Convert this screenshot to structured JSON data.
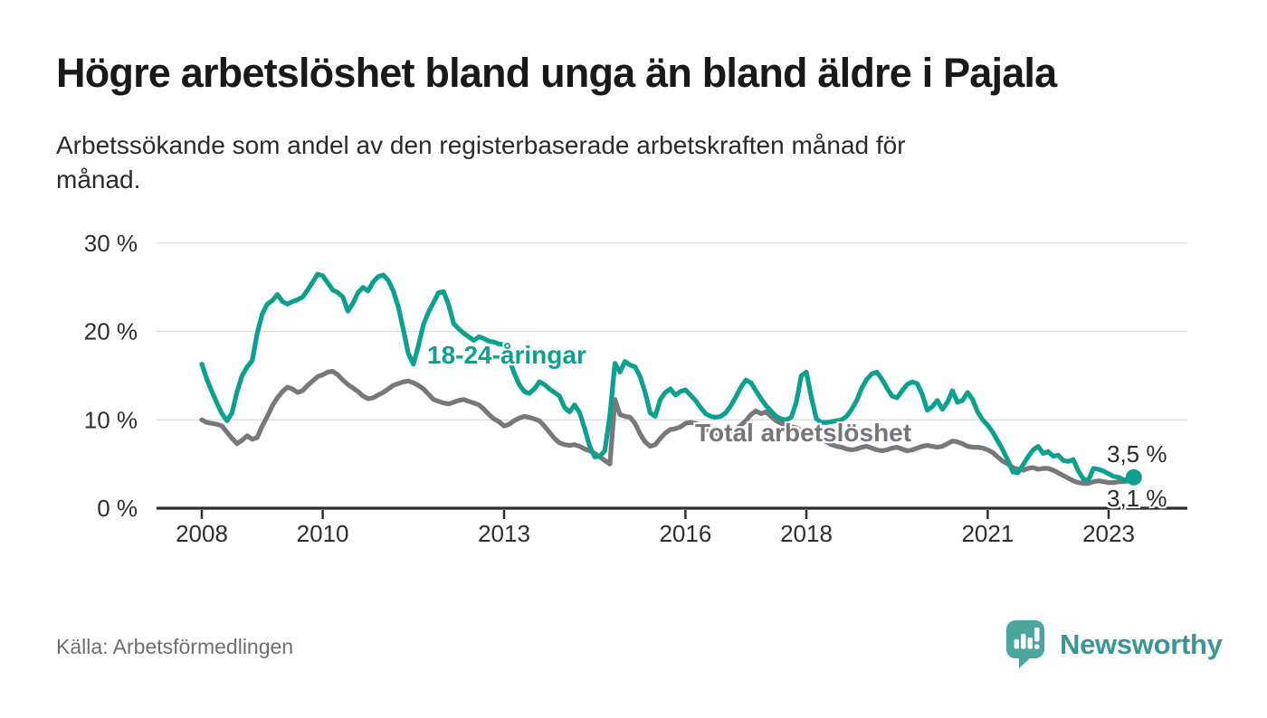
{
  "header": {
    "title": "Högre arbetslöshet bland unga än bland äldre i Pajala",
    "subtitle": "Arbetssökande som andel av den registerbaserade arbetskraften månad för\nmånad."
  },
  "footer": {
    "source": "Källa: Arbetsförmedlingen",
    "brand": "Newsworthy",
    "logo_icon": "speech-bubble-bar-chart-icon"
  },
  "colors": {
    "young_series": "#0CA18F",
    "total_series": "#77777C",
    "grid": "#DCDCDC",
    "axis": "#2E2E2E",
    "brand_teal": "#399693",
    "logo_bubble": "#4BA5A0"
  },
  "chart_data": {
    "type": "line",
    "title": "Högre arbetslöshet bland unga än bland äldre i Pajala",
    "xlabel": "",
    "ylabel": "",
    "unit": "%",
    "frequency": "monthly",
    "x_start": "2008-01",
    "x_end": "2023-06",
    "x_ticks": [
      2008,
      2010,
      2013,
      2016,
      2018,
      2021,
      2023
    ],
    "y_ticks": [
      0,
      10,
      20,
      30
    ],
    "y_tick_suffix": " %",
    "ylim": [
      0,
      30
    ],
    "grid": "horizontal",
    "legend": "inline-labels",
    "series": [
      {
        "name": "Total arbetslöshet",
        "color": "#77777C",
        "end_label": "3,1 %",
        "end_value": 3.1,
        "end_dot": false,
        "values": [
          10.0,
          9.7,
          9.6,
          9.5,
          9.3,
          8.6,
          7.9,
          7.3,
          7.7,
          8.2,
          7.8,
          8.0,
          9.3,
          10.4,
          11.6,
          12.5,
          13.2,
          13.7,
          13.5,
          13.1,
          13.3,
          13.9,
          14.4,
          14.9,
          15.1,
          15.4,
          15.5,
          15.1,
          14.5,
          14.0,
          13.6,
          13.2,
          12.7,
          12.4,
          12.5,
          12.8,
          13.1,
          13.5,
          13.9,
          14.1,
          14.3,
          14.4,
          14.2,
          13.9,
          13.5,
          12.9,
          12.3,
          12.1,
          11.9,
          11.8,
          12.0,
          12.2,
          12.3,
          12.1,
          11.9,
          11.7,
          11.2,
          10.6,
          10.1,
          9.8,
          9.3,
          9.5,
          9.9,
          10.2,
          10.4,
          10.3,
          10.1,
          9.9,
          9.3,
          8.6,
          7.9,
          7.4,
          7.2,
          7.1,
          7.2,
          7.0,
          6.7,
          6.5,
          6.2,
          5.8,
          5.4,
          5.0,
          12.3,
          10.6,
          10.4,
          10.3,
          9.6,
          8.4,
          7.5,
          7.0,
          7.2,
          7.9,
          8.5,
          8.9,
          9.0,
          9.2,
          9.6,
          9.7,
          9.6,
          9.4,
          9.0,
          8.7,
          8.5,
          8.4,
          8.5,
          8.7,
          8.9,
          9.4,
          9.9,
          10.6,
          11.0,
          10.7,
          10.9,
          10.4,
          9.9,
          9.6,
          9.4,
          9.2,
          9.1,
          8.8,
          8.9,
          8.7,
          8.3,
          7.9,
          7.5,
          7.2,
          7.0,
          6.9,
          6.7,
          6.6,
          6.7,
          6.9,
          7.0,
          6.8,
          6.6,
          6.5,
          6.6,
          6.8,
          6.9,
          6.7,
          6.5,
          6.6,
          6.8,
          7.0,
          7.1,
          7.0,
          6.9,
          7.0,
          7.3,
          7.6,
          7.5,
          7.3,
          7.0,
          6.9,
          6.9,
          6.8,
          6.6,
          6.3,
          5.8,
          5.3,
          5.0,
          4.6,
          4.4,
          4.3,
          4.5,
          4.6,
          4.4,
          4.5,
          4.5,
          4.3,
          4.0,
          3.7,
          3.4,
          3.1,
          2.9,
          2.8,
          2.8,
          3.0,
          3.1,
          3.0,
          2.9,
          2.9,
          3.0,
          3.0,
          3.1,
          3.1
        ]
      },
      {
        "name": "18-24-åringar",
        "color": "#0CA18F",
        "end_label": "3,5 %",
        "end_value": 3.5,
        "end_dot": true,
        "values": [
          16.3,
          14.6,
          13.2,
          11.9,
          10.7,
          9.9,
          10.8,
          13.2,
          15.0,
          16.0,
          16.7,
          19.8,
          22.0,
          23.1,
          23.5,
          24.2,
          23.4,
          23.1,
          23.4,
          23.6,
          23.9,
          24.7,
          25.6,
          26.5,
          26.3,
          25.5,
          24.7,
          24.4,
          23.9,
          22.3,
          23.2,
          24.4,
          25.0,
          24.6,
          25.6,
          26.2,
          26.4,
          25.8,
          24.6,
          22.8,
          20.2,
          17.5,
          16.3,
          18.4,
          20.8,
          22.2,
          23.3,
          24.4,
          24.5,
          23.0,
          20.9,
          20.3,
          19.8,
          19.4,
          19.0,
          19.4,
          19.2,
          18.9,
          18.8,
          18.6,
          18.5,
          16.9,
          15.3,
          14.0,
          13.2,
          13.0,
          13.5,
          14.3,
          14.0,
          13.5,
          13.1,
          12.7,
          11.4,
          10.9,
          11.7,
          10.8,
          9.0,
          7.0,
          5.8,
          5.9,
          6.5,
          10.5,
          16.4,
          15.4,
          16.6,
          16.2,
          16.0,
          14.9,
          13.1,
          10.8,
          10.4,
          12.3,
          13.1,
          13.5,
          12.8,
          13.2,
          13.4,
          12.8,
          12.2,
          11.4,
          10.7,
          10.4,
          10.3,
          10.4,
          10.8,
          11.6,
          12.6,
          13.7,
          14.5,
          14.2,
          13.3,
          12.4,
          11.6,
          11.0,
          10.4,
          10.1,
          10.0,
          10.3,
          12.0,
          15.0,
          15.4,
          12.5,
          10.1,
          9.7,
          9.7,
          9.8,
          9.9,
          10.0,
          10.4,
          11.2,
          12.2,
          13.6,
          14.6,
          15.2,
          15.4,
          14.6,
          13.6,
          12.7,
          12.5,
          13.3,
          14.0,
          14.3,
          14.1,
          12.9,
          11.1,
          11.5,
          12.2,
          11.2,
          12.0,
          13.3,
          12.0,
          12.2,
          13.1,
          12.3,
          10.9,
          10.0,
          9.4,
          8.6,
          7.6,
          6.6,
          5.4,
          4.1,
          4.0,
          4.9,
          5.8,
          6.6,
          7.0,
          6.2,
          6.4,
          5.9,
          6.0,
          5.4,
          5.3,
          5.5,
          4.2,
          3.3,
          3.2,
          4.5,
          4.4,
          4.2,
          3.9,
          3.6,
          3.5,
          3.2,
          3.3,
          3.5
        ]
      }
    ]
  }
}
